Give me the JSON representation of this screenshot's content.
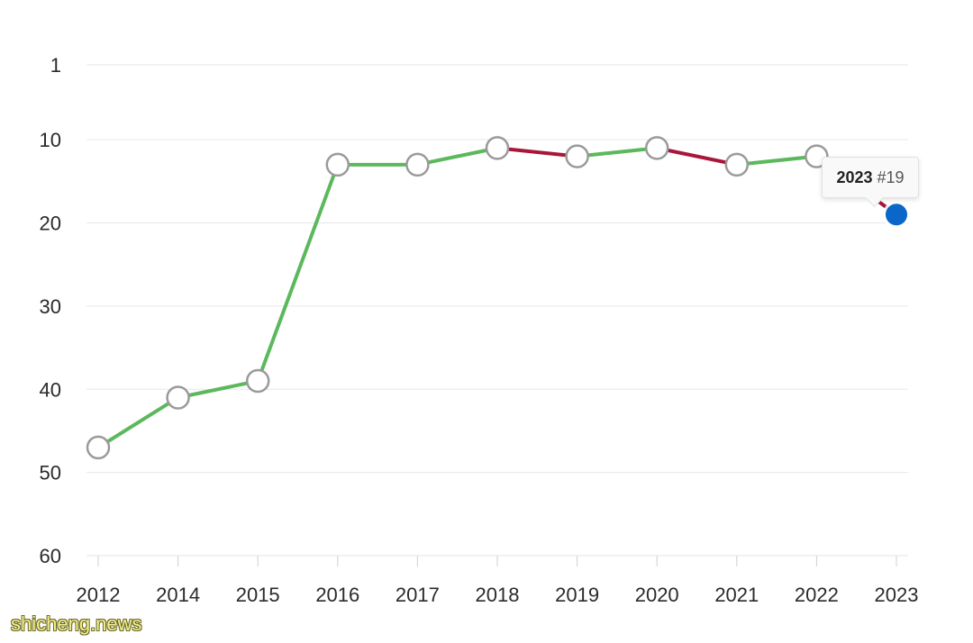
{
  "chart_data": {
    "type": "line",
    "title": "",
    "xlabel": "",
    "ylabel": "",
    "y_inverted": true,
    "ylim": [
      60,
      1
    ],
    "y_ticks": [
      1,
      10,
      20,
      30,
      40,
      50,
      60
    ],
    "grid": true,
    "categories": [
      "2012",
      "2014",
      "2015",
      "2016",
      "2017",
      "2018",
      "2019",
      "2020",
      "2021",
      "2022",
      "2023"
    ],
    "values": [
      47,
      41,
      39,
      13,
      13,
      11,
      12,
      11,
      13,
      12,
      19
    ],
    "colors": {
      "improved": "#5cb85c",
      "declined": "#a8163a",
      "highlight": "#0a66c8",
      "marker_stroke": "#9a9a9a"
    },
    "tooltip": {
      "year": "2023",
      "rank": "#19"
    }
  },
  "watermark": "shicheng.news"
}
